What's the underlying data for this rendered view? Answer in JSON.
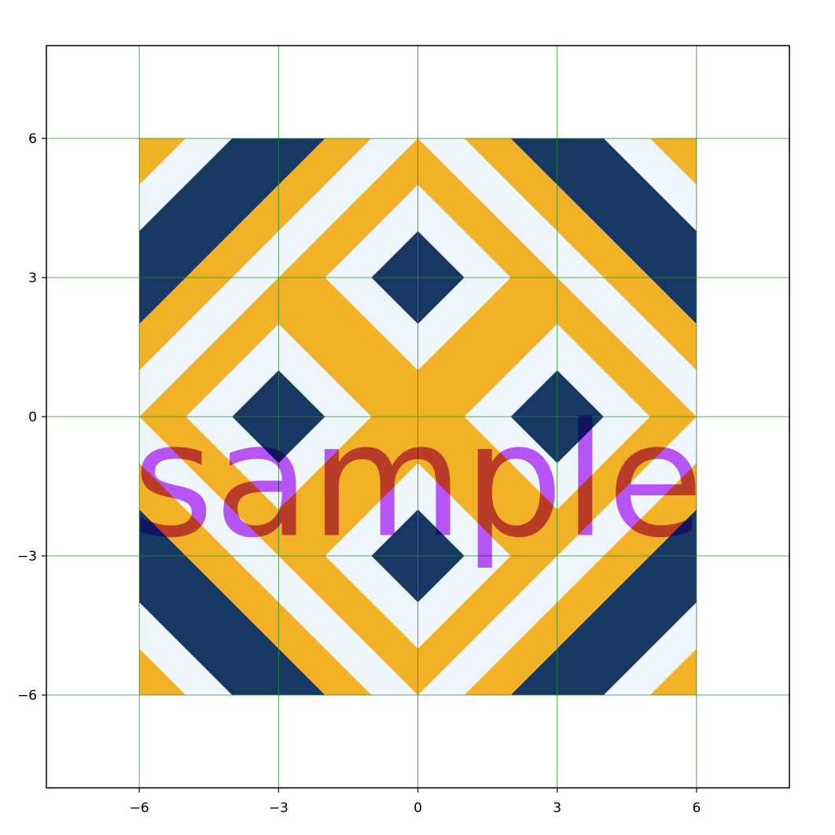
{
  "chart_data": {
    "type": "other",
    "title": "",
    "xlabel": "",
    "ylabel": "",
    "xlim": [
      -8,
      8
    ],
    "ylim": [
      -8,
      8
    ],
    "grid": true,
    "grid_color": "#2e8b2e",
    "xticks": [
      -6,
      -3,
      0,
      3,
      6
    ],
    "yticks": [
      -6,
      -3,
      0,
      3,
      6
    ],
    "xtick_labels": [
      "−6",
      "−3",
      "0",
      "3",
      "6"
    ],
    "ytick_labels": [
      "−6",
      "−3",
      "0",
      "3",
      "6"
    ],
    "colors": {
      "navy": "#163863",
      "white": "#eef6fb",
      "gold": "#f2b227",
      "watermark": "#c04ef9"
    },
    "pattern": {
      "extent": [
        -6,
        6,
        -6,
        6
      ],
      "description_units": "data units",
      "background_color": "gold",
      "regions": [
        {
          "color": "white",
          "points": [
            [
              -6,
              5
            ],
            [
              -5,
              6
            ],
            [
              -2,
              6
            ],
            [
              -6,
              2
            ]
          ]
        },
        {
          "color": "white",
          "points": [
            [
              -6,
              1
            ],
            [
              -1,
              6
            ],
            [
              1,
              6
            ],
            [
              -6,
              -1
            ]
          ]
        },
        {
          "color": "navy",
          "points": [
            [
              -6,
              4
            ],
            [
              -4,
              6
            ],
            [
              -2,
              6
            ],
            [
              -6,
              2
            ]
          ]
        },
        {
          "color": "white",
          "points": [
            [
              6,
              5
            ],
            [
              5,
              6
            ],
            [
              2,
              6
            ],
            [
              6,
              2
            ]
          ]
        },
        {
          "color": "white",
          "points": [
            [
              6,
              1
            ],
            [
              1,
              6
            ],
            [
              -1,
              6
            ],
            [
              6,
              -1
            ]
          ]
        },
        {
          "color": "navy",
          "points": [
            [
              6,
              4
            ],
            [
              4,
              6
            ],
            [
              2,
              6
            ],
            [
              6,
              2
            ]
          ]
        },
        {
          "color": "white",
          "points": [
            [
              -6,
              -5
            ],
            [
              -5,
              -6
            ],
            [
              -2,
              -6
            ],
            [
              -6,
              -2
            ]
          ]
        },
        {
          "color": "white",
          "points": [
            [
              -6,
              -1
            ],
            [
              -1,
              -6
            ],
            [
              1,
              -6
            ],
            [
              -6,
              1
            ]
          ]
        },
        {
          "color": "navy",
          "points": [
            [
              -6,
              -4
            ],
            [
              -4,
              -6
            ],
            [
              -2,
              -6
            ],
            [
              -6,
              -2
            ]
          ]
        },
        {
          "color": "white",
          "points": [
            [
              6,
              -5
            ],
            [
              5,
              -6
            ],
            [
              2,
              -6
            ],
            [
              6,
              -2
            ]
          ]
        },
        {
          "color": "white",
          "points": [
            [
              6,
              -1
            ],
            [
              1,
              -6
            ],
            [
              -1,
              -6
            ],
            [
              6,
              1
            ]
          ]
        },
        {
          "color": "navy",
          "points": [
            [
              6,
              -4
            ],
            [
              4,
              -6
            ],
            [
              2,
              -6
            ],
            [
              6,
              -2
            ]
          ]
        },
        {
          "color": "gold",
          "points": [
            [
              0,
              6
            ],
            [
              6,
              0
            ],
            [
              0,
              -6
            ],
            [
              -6,
              0
            ]
          ]
        },
        {
          "color": "white",
          "points": [
            [
              0,
              5
            ],
            [
              2,
              3
            ],
            [
              0,
              1
            ],
            [
              -2,
              3
            ]
          ]
        },
        {
          "color": "navy",
          "points": [
            [
              0,
              4
            ],
            [
              1,
              3
            ],
            [
              0,
              2
            ],
            [
              -1,
              3
            ]
          ]
        },
        {
          "color": "white",
          "points": [
            [
              0,
              -1
            ],
            [
              2,
              -3
            ],
            [
              0,
              -5
            ],
            [
              -2,
              -3
            ]
          ]
        },
        {
          "color": "navy",
          "points": [
            [
              0,
              -2
            ],
            [
              1,
              -3
            ],
            [
              0,
              -4
            ],
            [
              -1,
              -3
            ]
          ]
        },
        {
          "color": "white",
          "points": [
            [
              -3,
              2
            ],
            [
              -1,
              0
            ],
            [
              -3,
              -2
            ],
            [
              -5,
              0
            ]
          ]
        },
        {
          "color": "navy",
          "points": [
            [
              -3,
              1
            ],
            [
              -2,
              0
            ],
            [
              -3,
              -1
            ],
            [
              -4,
              0
            ]
          ]
        },
        {
          "color": "white",
          "points": [
            [
              3,
              2
            ],
            [
              5,
              0
            ],
            [
              3,
              -2
            ],
            [
              1,
              0
            ]
          ]
        },
        {
          "color": "navy",
          "points": [
            [
              3,
              1
            ],
            [
              4,
              0
            ],
            [
              3,
              -1
            ],
            [
              2,
              0
            ]
          ]
        }
      ]
    },
    "watermark_text": "sample"
  }
}
